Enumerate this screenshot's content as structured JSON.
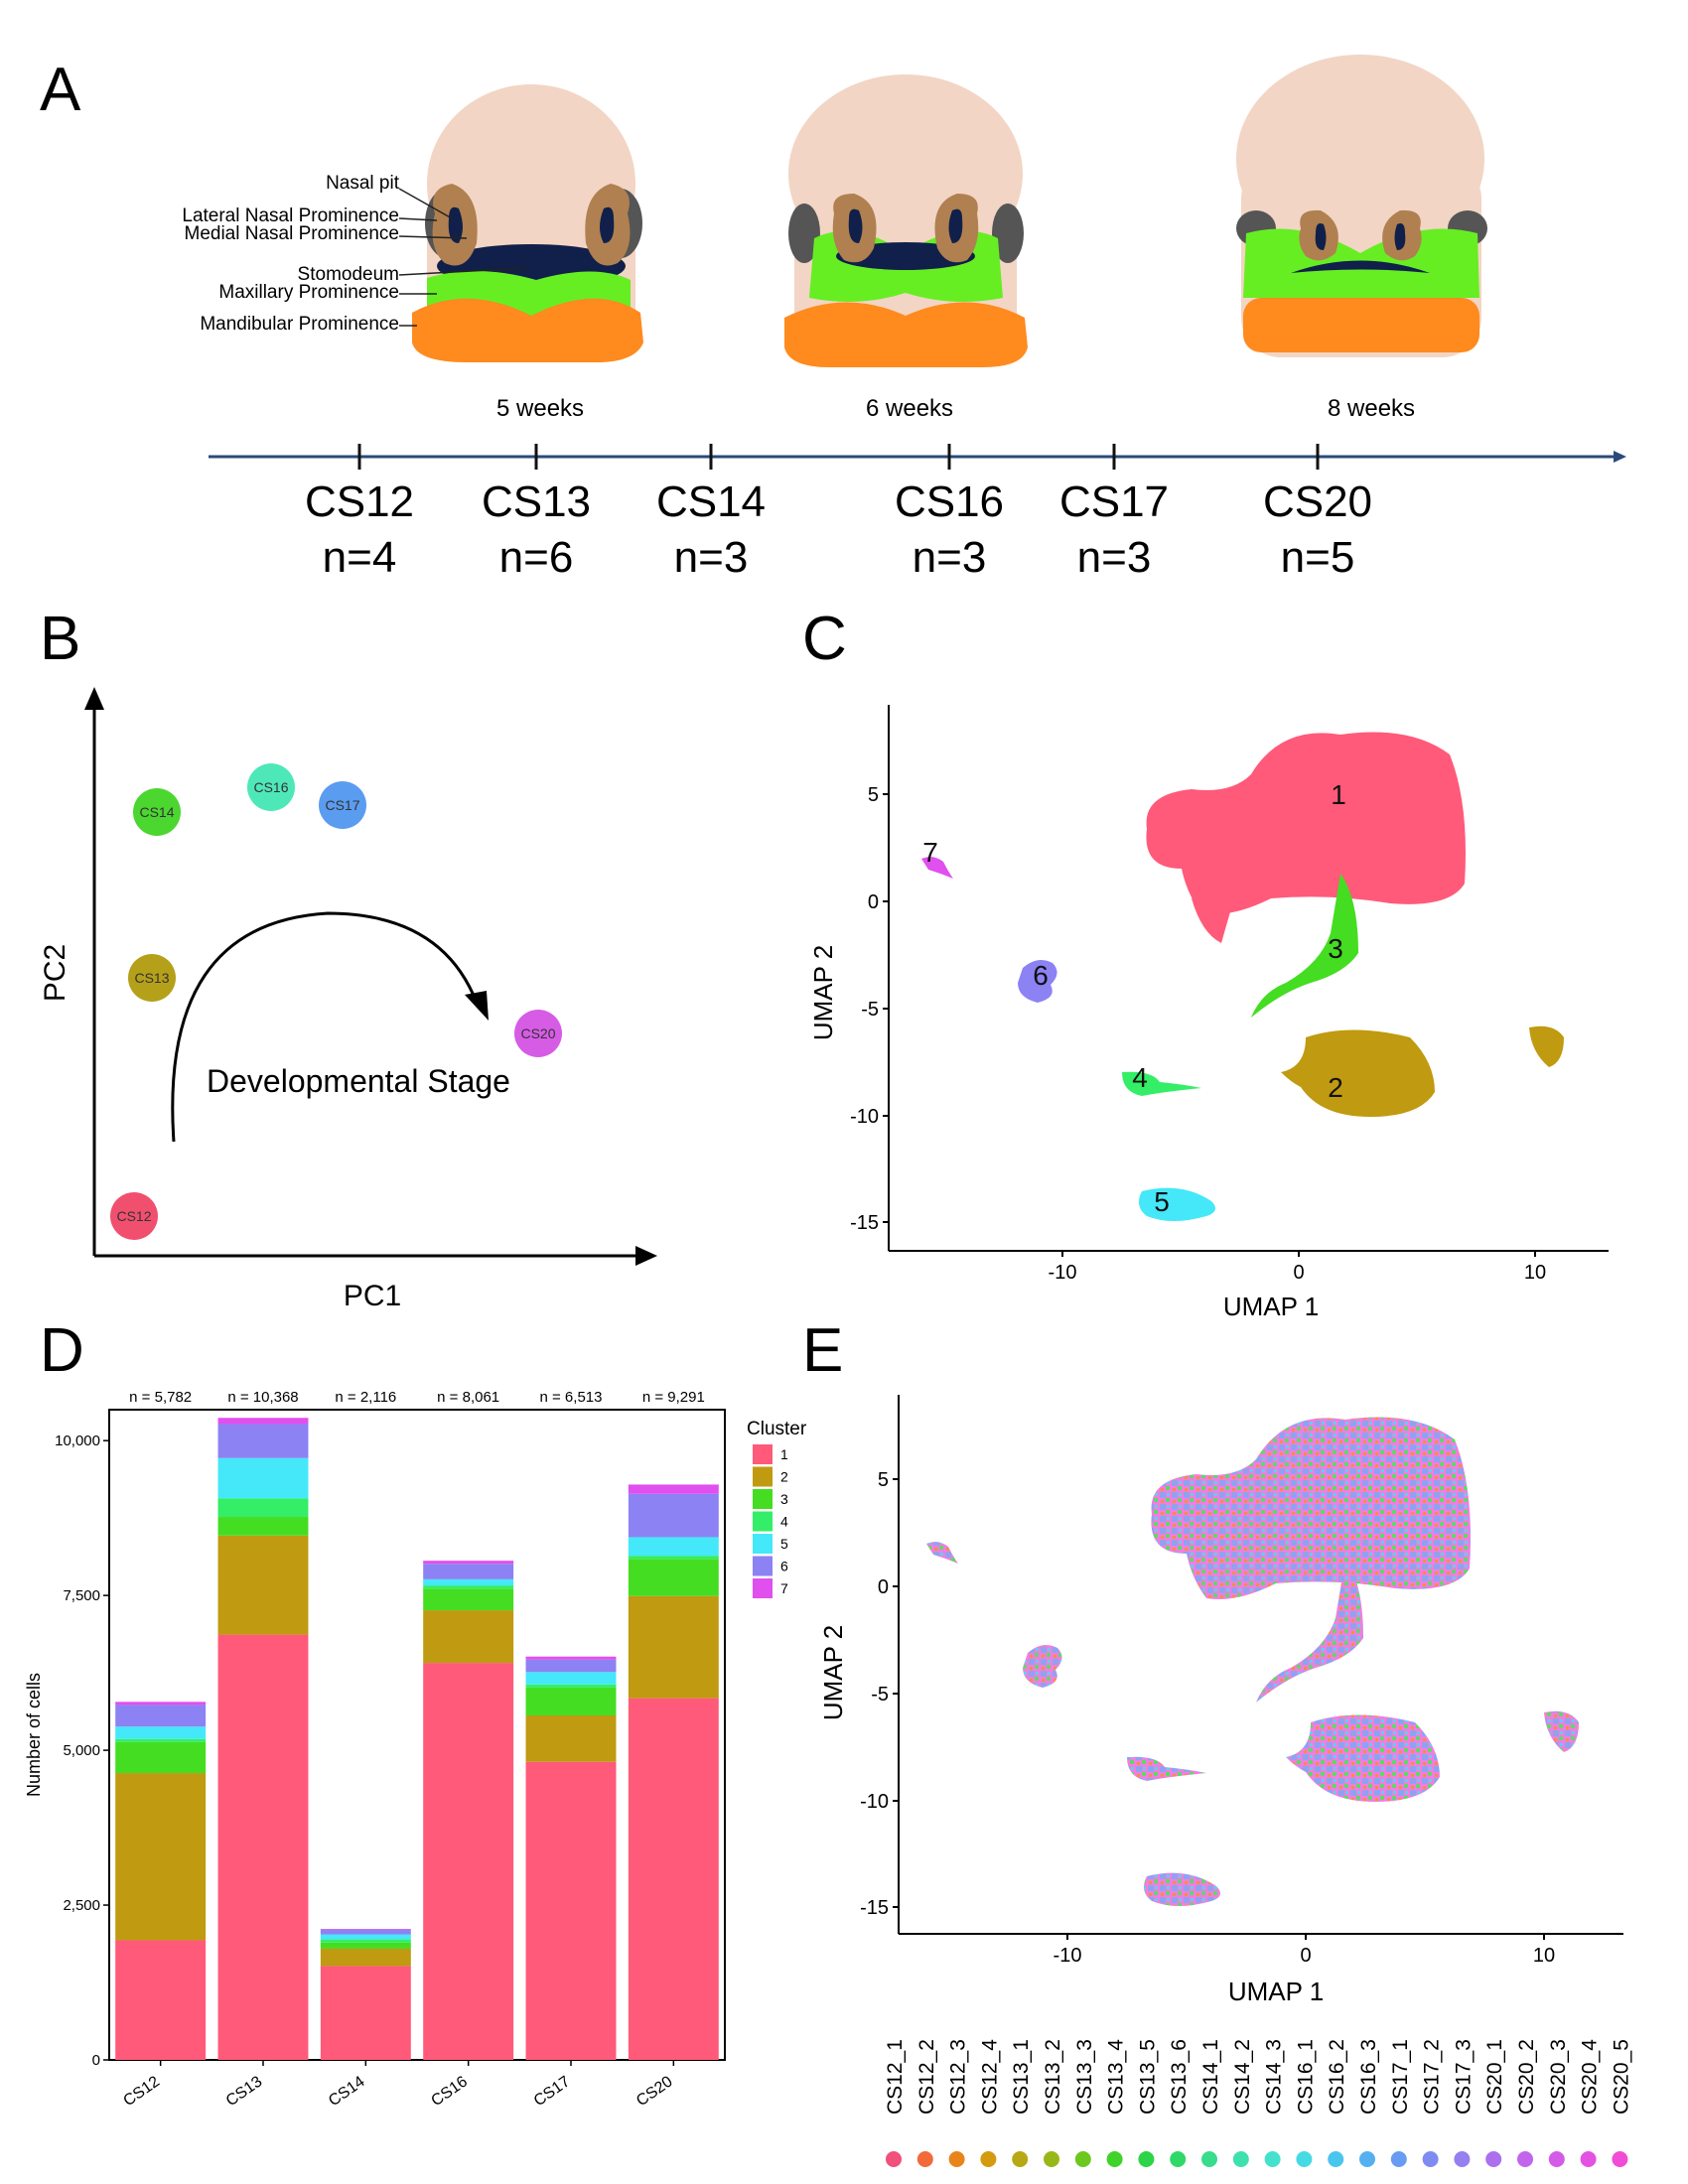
{
  "panels": {
    "A": {
      "label": "A",
      "structures": [
        "Nasal pit",
        "Lateral Nasal Prominence",
        "Medial Nasal Prominence",
        "Stomodeum",
        "Maxillary Prominence",
        "Mandibular Prominence"
      ],
      "weeks": [
        "5 weeks",
        "6 weeks",
        "8 weeks"
      ],
      "timeline": [
        {
          "stage": "CS12",
          "n": "n=4"
        },
        {
          "stage": "CS13",
          "n": "n=6"
        },
        {
          "stage": "CS14",
          "n": "n=3"
        },
        {
          "stage": "CS16",
          "n": "n=3"
        },
        {
          "stage": "CS17",
          "n": "n=3"
        },
        {
          "stage": "CS20",
          "n": "n=5"
        }
      ],
      "colors": {
        "head": "#f2d5c4",
        "nasal": "#b08050",
        "stomodeum": "#10204a",
        "maxillary": "#66ee22",
        "mandibular": "#ff8a1e",
        "eye": "#555555",
        "timeline": "#2b4a7a"
      }
    },
    "B": {
      "label": "B",
      "xlabel": "PC1",
      "ylabel": "PC2",
      "arrow_label": "Developmental Stage",
      "points": [
        {
          "name": "CS12",
          "color": "#f0506e"
        },
        {
          "name": "CS13",
          "color": "#b5a01a"
        },
        {
          "name": "CS14",
          "color": "#4cd630"
        },
        {
          "name": "CS16",
          "color": "#4ee8b8"
        },
        {
          "name": "CS17",
          "color": "#5a9cf0"
        },
        {
          "name": "CS20",
          "color": "#d65ce6"
        }
      ]
    },
    "C": {
      "label": "C",
      "xlabel": "UMAP 1",
      "ylabel": "UMAP 2",
      "xticks": [
        "-10",
        "0",
        "10"
      ],
      "yticks": [
        "5",
        "0",
        "-5",
        "-10",
        "-15"
      ],
      "cluster_labels": [
        "1",
        "2",
        "3",
        "4",
        "5",
        "6",
        "7"
      ]
    },
    "D": {
      "label": "D",
      "legend_title": "Cluster",
      "ylabel": "Number of cells"
    },
    "E": {
      "label": "E",
      "xlabel": "UMAP 1",
      "ylabel": "UMAP 2",
      "xticks": [
        "-10",
        "0",
        "10"
      ],
      "yticks": [
        "5",
        "0",
        "-5",
        "-10",
        "-15"
      ],
      "samples": [
        "CS12_1",
        "CS12_2",
        "CS12_3",
        "CS12_4",
        "CS13_1",
        "CS13_2",
        "CS13_3",
        "CS13_4",
        "CS13_5",
        "CS13_6",
        "CS14_1",
        "CS14_2",
        "CS14_3",
        "CS16_1",
        "CS16_2",
        "CS16_3",
        "CS17_1",
        "CS17_2",
        "CS17_3",
        "CS20_1",
        "CS20_2",
        "CS20_3",
        "CS20_4",
        "CS20_5"
      ],
      "sample_colors": [
        "#f0507a",
        "#f26a3a",
        "#e8841a",
        "#d49a10",
        "#b8a815",
        "#98b818",
        "#6cc81c",
        "#40d22a",
        "#2ed448",
        "#30d868",
        "#38dc8c",
        "#3ee0ae",
        "#44e2cc",
        "#46dae4",
        "#4ac6ee",
        "#54b0f0",
        "#689cf2",
        "#7e8cf2",
        "#9680f0",
        "#ac70ee",
        "#c264ec",
        "#d45ae8",
        "#e452e2",
        "#f04cd6"
      ]
    }
  },
  "chart_data": {
    "type": "bar",
    "stacked": true,
    "categories": [
      "CS12",
      "CS13",
      "CS14",
      "CS16",
      "CS17",
      "CS20"
    ],
    "totals_labels": [
      "n = 5,782",
      "n = 10,368",
      "n = 2,116",
      "n = 8,061",
      "n = 6,513",
      "n = 9,291"
    ],
    "ylim": [
      0,
      10500
    ],
    "yticks": [
      0,
      2500,
      5000,
      7500,
      10000
    ],
    "ytick_labels": [
      "0",
      "2,500",
      "5,000",
      "7,500",
      "10,000"
    ],
    "ylabel": "Number of cells",
    "legend_title": "Cluster",
    "series": [
      {
        "name": "1",
        "color": "#ff5a7a",
        "values": [
          1932,
          6868,
          1516,
          6411,
          4813,
          5841
        ]
      },
      {
        "name": "2",
        "color": "#c09a10",
        "values": [
          2700,
          1600,
          280,
          850,
          750,
          1650
        ]
      },
      {
        "name": "3",
        "color": "#44dd22",
        "values": [
          500,
          300,
          100,
          350,
          450,
          600
        ]
      },
      {
        "name": "4",
        "color": "#33ee66",
        "values": [
          50,
          300,
          50,
          50,
          50,
          50
        ]
      },
      {
        "name": "5",
        "color": "#44e8f8",
        "values": [
          200,
          650,
          80,
          100,
          200,
          300
        ]
      },
      {
        "name": "6",
        "color": "#8c82f4",
        "values": [
          350,
          550,
          80,
          250,
          200,
          700
        ]
      },
      {
        "name": "7",
        "color": "#e050ee",
        "values": [
          50,
          100,
          10,
          50,
          50,
          150
        ]
      }
    ],
    "legend_placement": "right"
  }
}
